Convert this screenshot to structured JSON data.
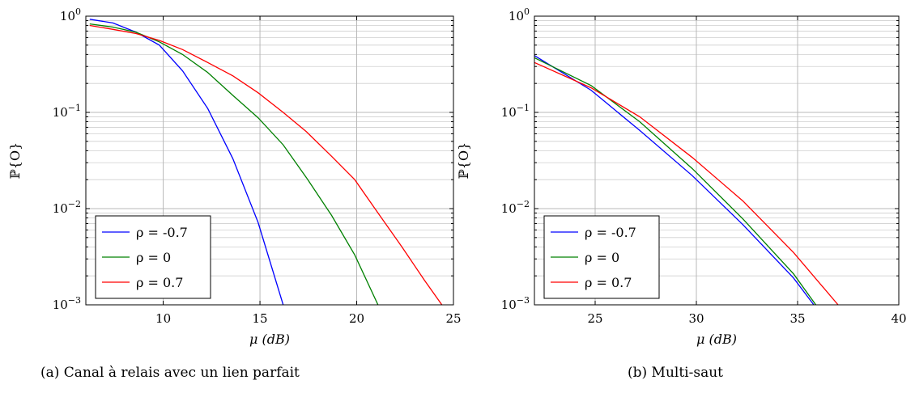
{
  "chart_data": [
    {
      "type": "line",
      "caption": "(a) Canal à relais avec un lien parfait",
      "xlabel": "μ (dB)",
      "ylabel": "ℙ{O}",
      "xlim": [
        6,
        25
      ],
      "ylim": [
        0.001,
        1
      ],
      "yscale": "log",
      "grid": true,
      "legend_position": "bottom-left",
      "xticks": [
        {
          "value": 10,
          "label": "10"
        },
        {
          "value": 15,
          "label": "15"
        },
        {
          "value": 20,
          "label": "20"
        },
        {
          "value": 25,
          "label": "25"
        }
      ],
      "yticks": [
        {
          "value": 1,
          "base": "10",
          "exp": "0"
        },
        {
          "value": 0.1,
          "base": "10",
          "exp": "−1"
        },
        {
          "value": 0.01,
          "base": "10",
          "exp": "−2"
        },
        {
          "value": 0.001,
          "base": "10",
          "exp": "−3"
        }
      ],
      "series": [
        {
          "name": "ρ = -0.7",
          "color": "#0000ff",
          "x": [
            6.2,
            7.4,
            8.6,
            9.8,
            11.0,
            12.3,
            13.6,
            14.9,
            16.2
          ],
          "y": [
            0.93,
            0.85,
            0.68,
            0.5,
            0.27,
            0.11,
            0.033,
            0.0072,
            0.001
          ]
        },
        {
          "name": "ρ = 0",
          "color": "#008000",
          "x": [
            6.2,
            7.4,
            8.6,
            9.8,
            11.0,
            12.3,
            13.6,
            14.9,
            16.2,
            17.4,
            18.7,
            19.9,
            21.1
          ],
          "y": [
            0.83,
            0.77,
            0.68,
            0.54,
            0.4,
            0.26,
            0.15,
            0.088,
            0.046,
            0.021,
            0.0085,
            0.0033,
            0.001
          ]
        },
        {
          "name": "ρ = 0.7",
          "color": "#ff0000",
          "x": [
            6.2,
            7.4,
            8.6,
            9.8,
            11.0,
            12.3,
            13.6,
            14.9,
            16.2,
            17.4,
            18.7,
            19.9,
            21.1,
            22.3,
            23.5,
            24.4
          ],
          "y": [
            0.8,
            0.73,
            0.66,
            0.56,
            0.45,
            0.33,
            0.24,
            0.16,
            0.1,
            0.063,
            0.035,
            0.02,
            0.009,
            0.0041,
            0.0018,
            0.001
          ]
        }
      ]
    },
    {
      "type": "line",
      "caption": "(b) Multi-saut",
      "xlabel": "μ (dB)",
      "ylabel": "ℙ{O}",
      "xlim": [
        22,
        40
      ],
      "ylim": [
        0.001,
        1
      ],
      "yscale": "log",
      "grid": true,
      "legend_position": "bottom-left",
      "xticks": [
        {
          "value": 25,
          "label": "25"
        },
        {
          "value": 30,
          "label": "30"
        },
        {
          "value": 35,
          "label": "35"
        },
        {
          "value": 40,
          "label": "40"
        }
      ],
      "yticks": [
        {
          "value": 1,
          "base": "10",
          "exp": "0"
        },
        {
          "value": 0.1,
          "base": "10",
          "exp": "−1"
        },
        {
          "value": 0.01,
          "base": "10",
          "exp": "−2"
        },
        {
          "value": 0.001,
          "base": "10",
          "exp": "−3"
        }
      ],
      "series": [
        {
          "name": "ρ = -0.7",
          "color": "#0000ff",
          "x": [
            22.0,
            24.8,
            27.2,
            29.8,
            32.3,
            34.8,
            35.8
          ],
          "y": [
            0.39,
            0.17,
            0.065,
            0.022,
            0.0068,
            0.0019,
            0.001
          ]
        },
        {
          "name": "ρ = 0",
          "color": "#008000",
          "x": [
            22.0,
            24.8,
            27.2,
            29.8,
            32.3,
            34.8,
            35.9
          ],
          "y": [
            0.37,
            0.19,
            0.08,
            0.026,
            0.0078,
            0.0021,
            0.001
          ]
        },
        {
          "name": "ρ = 0.7",
          "color": "#ff0000",
          "x": [
            22.0,
            24.8,
            27.2,
            29.8,
            32.3,
            34.8,
            37.0
          ],
          "y": [
            0.33,
            0.18,
            0.09,
            0.034,
            0.012,
            0.0035,
            0.001
          ]
        }
      ]
    }
  ]
}
